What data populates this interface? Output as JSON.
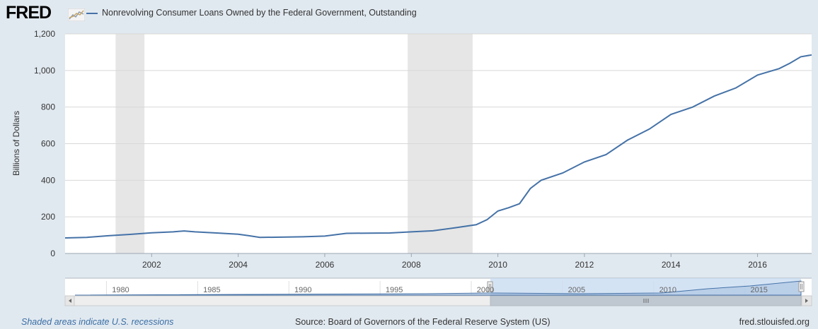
{
  "header": {
    "logo_text": "FRED",
    "legend_label": "Nonrevolving Consumer Loans Owned by the Federal Government, Outstanding"
  },
  "footer": {
    "recession_note": "Shaded areas indicate U.S. recessions",
    "source": "Source: Board of Governors of the Federal Reserve System (US)",
    "url": "fred.stlouisfed.org"
  },
  "colors": {
    "line": "#4572a7",
    "recession": "#e6e6e6",
    "background": "#e1e9f0",
    "plot": "#ffffff"
  },
  "navigator": {
    "year_labels": [
      "1980",
      "1985",
      "1990",
      "1995",
      "2000",
      "2005",
      "2010",
      "2015"
    ],
    "selected_range": [
      "2000",
      "2017"
    ]
  },
  "chart_data": {
    "type": "line",
    "title": "",
    "xlabel": "",
    "ylabel": "Billions of Dollars",
    "ylim": [
      0,
      1200
    ],
    "xlim": [
      "2000-01",
      "2017-04"
    ],
    "yticks": [
      "0",
      "200",
      "400",
      "600",
      "800",
      "1,000",
      "1,200"
    ],
    "xticks": [
      "2002",
      "2004",
      "2006",
      "2008",
      "2010",
      "2012",
      "2014",
      "2016"
    ],
    "grid": true,
    "recessions": [
      [
        "2001-03",
        "2001-11"
      ],
      [
        "2007-12",
        "2009-06"
      ]
    ],
    "series": [
      {
        "x": [
          "2000-01",
          "2000-07",
          "2001-01",
          "2001-07",
          "2002-01",
          "2002-07",
          "2002-10",
          "2003-01",
          "2003-07",
          "2004-01",
          "2004-04",
          "2004-07",
          "2005-01",
          "2005-07",
          "2005-10",
          "2006-01",
          "2006-07",
          "2007-01",
          "2007-07",
          "2008-01",
          "2008-07",
          "2009-01",
          "2009-07",
          "2009-10",
          "2010-01",
          "2010-04",
          "2010-07",
          "2010-10",
          "2011-01",
          "2011-07",
          "2012-01",
          "2012-07",
          "2013-01",
          "2013-07",
          "2014-01",
          "2014-07",
          "2015-01",
          "2015-07",
          "2016-01",
          "2016-07",
          "2016-10",
          "2017-01",
          "2017-04"
        ],
        "values": [
          85,
          88,
          97,
          104,
          113,
          118,
          123,
          118,
          112,
          105,
          97,
          88,
          89,
          91,
          93,
          95,
          110,
          111,
          112,
          118,
          124,
          140,
          157,
          185,
          232,
          250,
          272,
          355,
          400,
          440,
          500,
          540,
          620,
          680,
          760,
          800,
          860,
          905,
          975,
          1010,
          1040,
          1075,
          1085
        ]
      }
    ]
  }
}
